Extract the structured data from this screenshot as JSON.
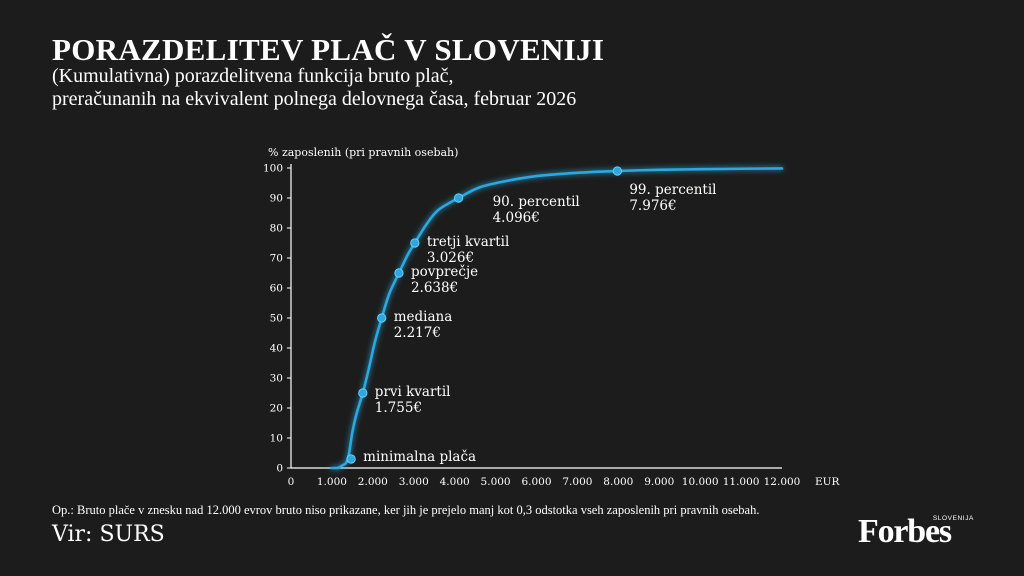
{
  "header": {
    "title": "PORAZDELITEV PLAČ V SLOVENIJI",
    "subtitle_line1": "(Kumulativna) porazdelitvena funkcija bruto plač,",
    "subtitle_line2": "preračunanih na ekvivalent polnega delovnega časa, februar 2026"
  },
  "footer": {
    "note": "Op.: Bruto plače v znesku nad 12.000 evrov bruto niso prikazane, ker jih je prejelo manj kot 0,3 odstotka vseh zaposlenih pri pravnih osebah.",
    "source": "Vir: SURS",
    "logo_word": "Forbes",
    "logo_sub": "SLOVENIJA"
  },
  "chart_data": {
    "type": "line",
    "ylabel": "% zaposlenih (pri pravnih osebah)",
    "xlabel": "EUR",
    "xlim": [
      0,
      12000
    ],
    "ylim": [
      0,
      100
    ],
    "x_ticks": [
      0,
      1000,
      2000,
      3000,
      4000,
      5000,
      6000,
      7000,
      8000,
      9000,
      10000,
      11000,
      12000
    ],
    "x_tick_labels": [
      "0",
      "1.000",
      "2.000",
      "3.000",
      "4.000",
      "5.000",
      "6.000",
      "7.000",
      "8.000",
      "9.000",
      "10.000",
      "11.000",
      "12.000"
    ],
    "y_ticks": [
      0,
      10,
      20,
      30,
      40,
      50,
      60,
      70,
      80,
      90,
      100
    ],
    "y_tick_labels": [
      "0",
      "10",
      "20",
      "30",
      "40",
      "50",
      "60",
      "70",
      "80",
      "90",
      "100"
    ],
    "grid": false,
    "line_color": "#29a9e0",
    "curve": {
      "x": [
        1150,
        1250,
        1350,
        1420,
        1500,
        1600,
        1755,
        1900,
        2050,
        2217,
        2400,
        2638,
        2850,
        3026,
        3300,
        3600,
        4096,
        4600,
        5200,
        6000,
        7000,
        7976,
        9000,
        10000,
        11000,
        12000
      ],
      "y": [
        0,
        0.8,
        1.8,
        5,
        12,
        18,
        25,
        33,
        42,
        50,
        58,
        65,
        71,
        75,
        81,
        86,
        90,
        93.5,
        95.5,
        97.3,
        98.4,
        99,
        99.4,
        99.6,
        99.75,
        99.85
      ]
    },
    "markers": [
      {
        "label": "minimalna plača",
        "value": "",
        "x": 1470,
        "y": 3
      },
      {
        "label": "prvi kvartil",
        "value": "1.755€",
        "x": 1755,
        "y": 25
      },
      {
        "label": "mediana",
        "value": "2.217€",
        "x": 2217,
        "y": 50
      },
      {
        "label": "povprečje",
        "value": "2.638€",
        "x": 2638,
        "y": 65
      },
      {
        "label": "tretji kvartil",
        "value": "3.026€",
        "x": 3026,
        "y": 75
      },
      {
        "label": "90. percentil",
        "value": "4.096€",
        "x": 4096,
        "y": 90
      },
      {
        "label": "99. percentil",
        "value": "7.976€",
        "x": 7976,
        "y": 99
      }
    ]
  }
}
